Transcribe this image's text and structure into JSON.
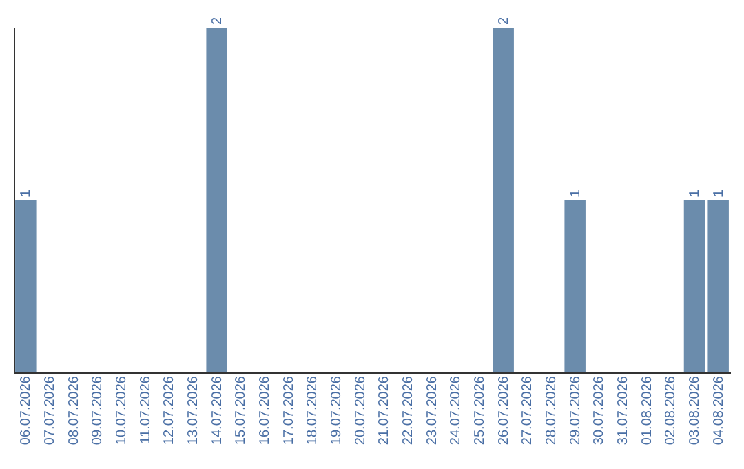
{
  "chart_data": {
    "type": "bar",
    "categories": [
      "06.07.2026",
      "07.07.2026",
      "08.07.2026",
      "09.07.2026",
      "10.07.2026",
      "11.07.2026",
      "12.07.2026",
      "13.07.2026",
      "14.07.2026",
      "15.07.2026",
      "16.07.2026",
      "17.07.2026",
      "18.07.2026",
      "19.07.2026",
      "20.07.2026",
      "21.07.2026",
      "22.07.2026",
      "23.07.2026",
      "24.07.2026",
      "25.07.2026",
      "26.07.2026",
      "27.07.2026",
      "28.07.2026",
      "29.07.2026",
      "30.07.2026",
      "31.07.2026",
      "01.08.2026",
      "02.08.2026",
      "03.08.2026",
      "04.08.2026"
    ],
    "values": [
      1,
      0,
      0,
      0,
      0,
      0,
      0,
      0,
      2,
      0,
      0,
      0,
      0,
      0,
      0,
      0,
      0,
      0,
      0,
      0,
      2,
      0,
      0,
      1,
      0,
      0,
      0,
      0,
      1,
      1
    ],
    "value_labels": [
      "1",
      null,
      null,
      null,
      null,
      null,
      null,
      null,
      "2",
      null,
      null,
      null,
      null,
      null,
      null,
      null,
      null,
      null,
      null,
      null,
      "2",
      null,
      null,
      "1",
      null,
      null,
      null,
      null,
      "1",
      "1"
    ],
    "color": "#6b8cac",
    "grid": false
  }
}
